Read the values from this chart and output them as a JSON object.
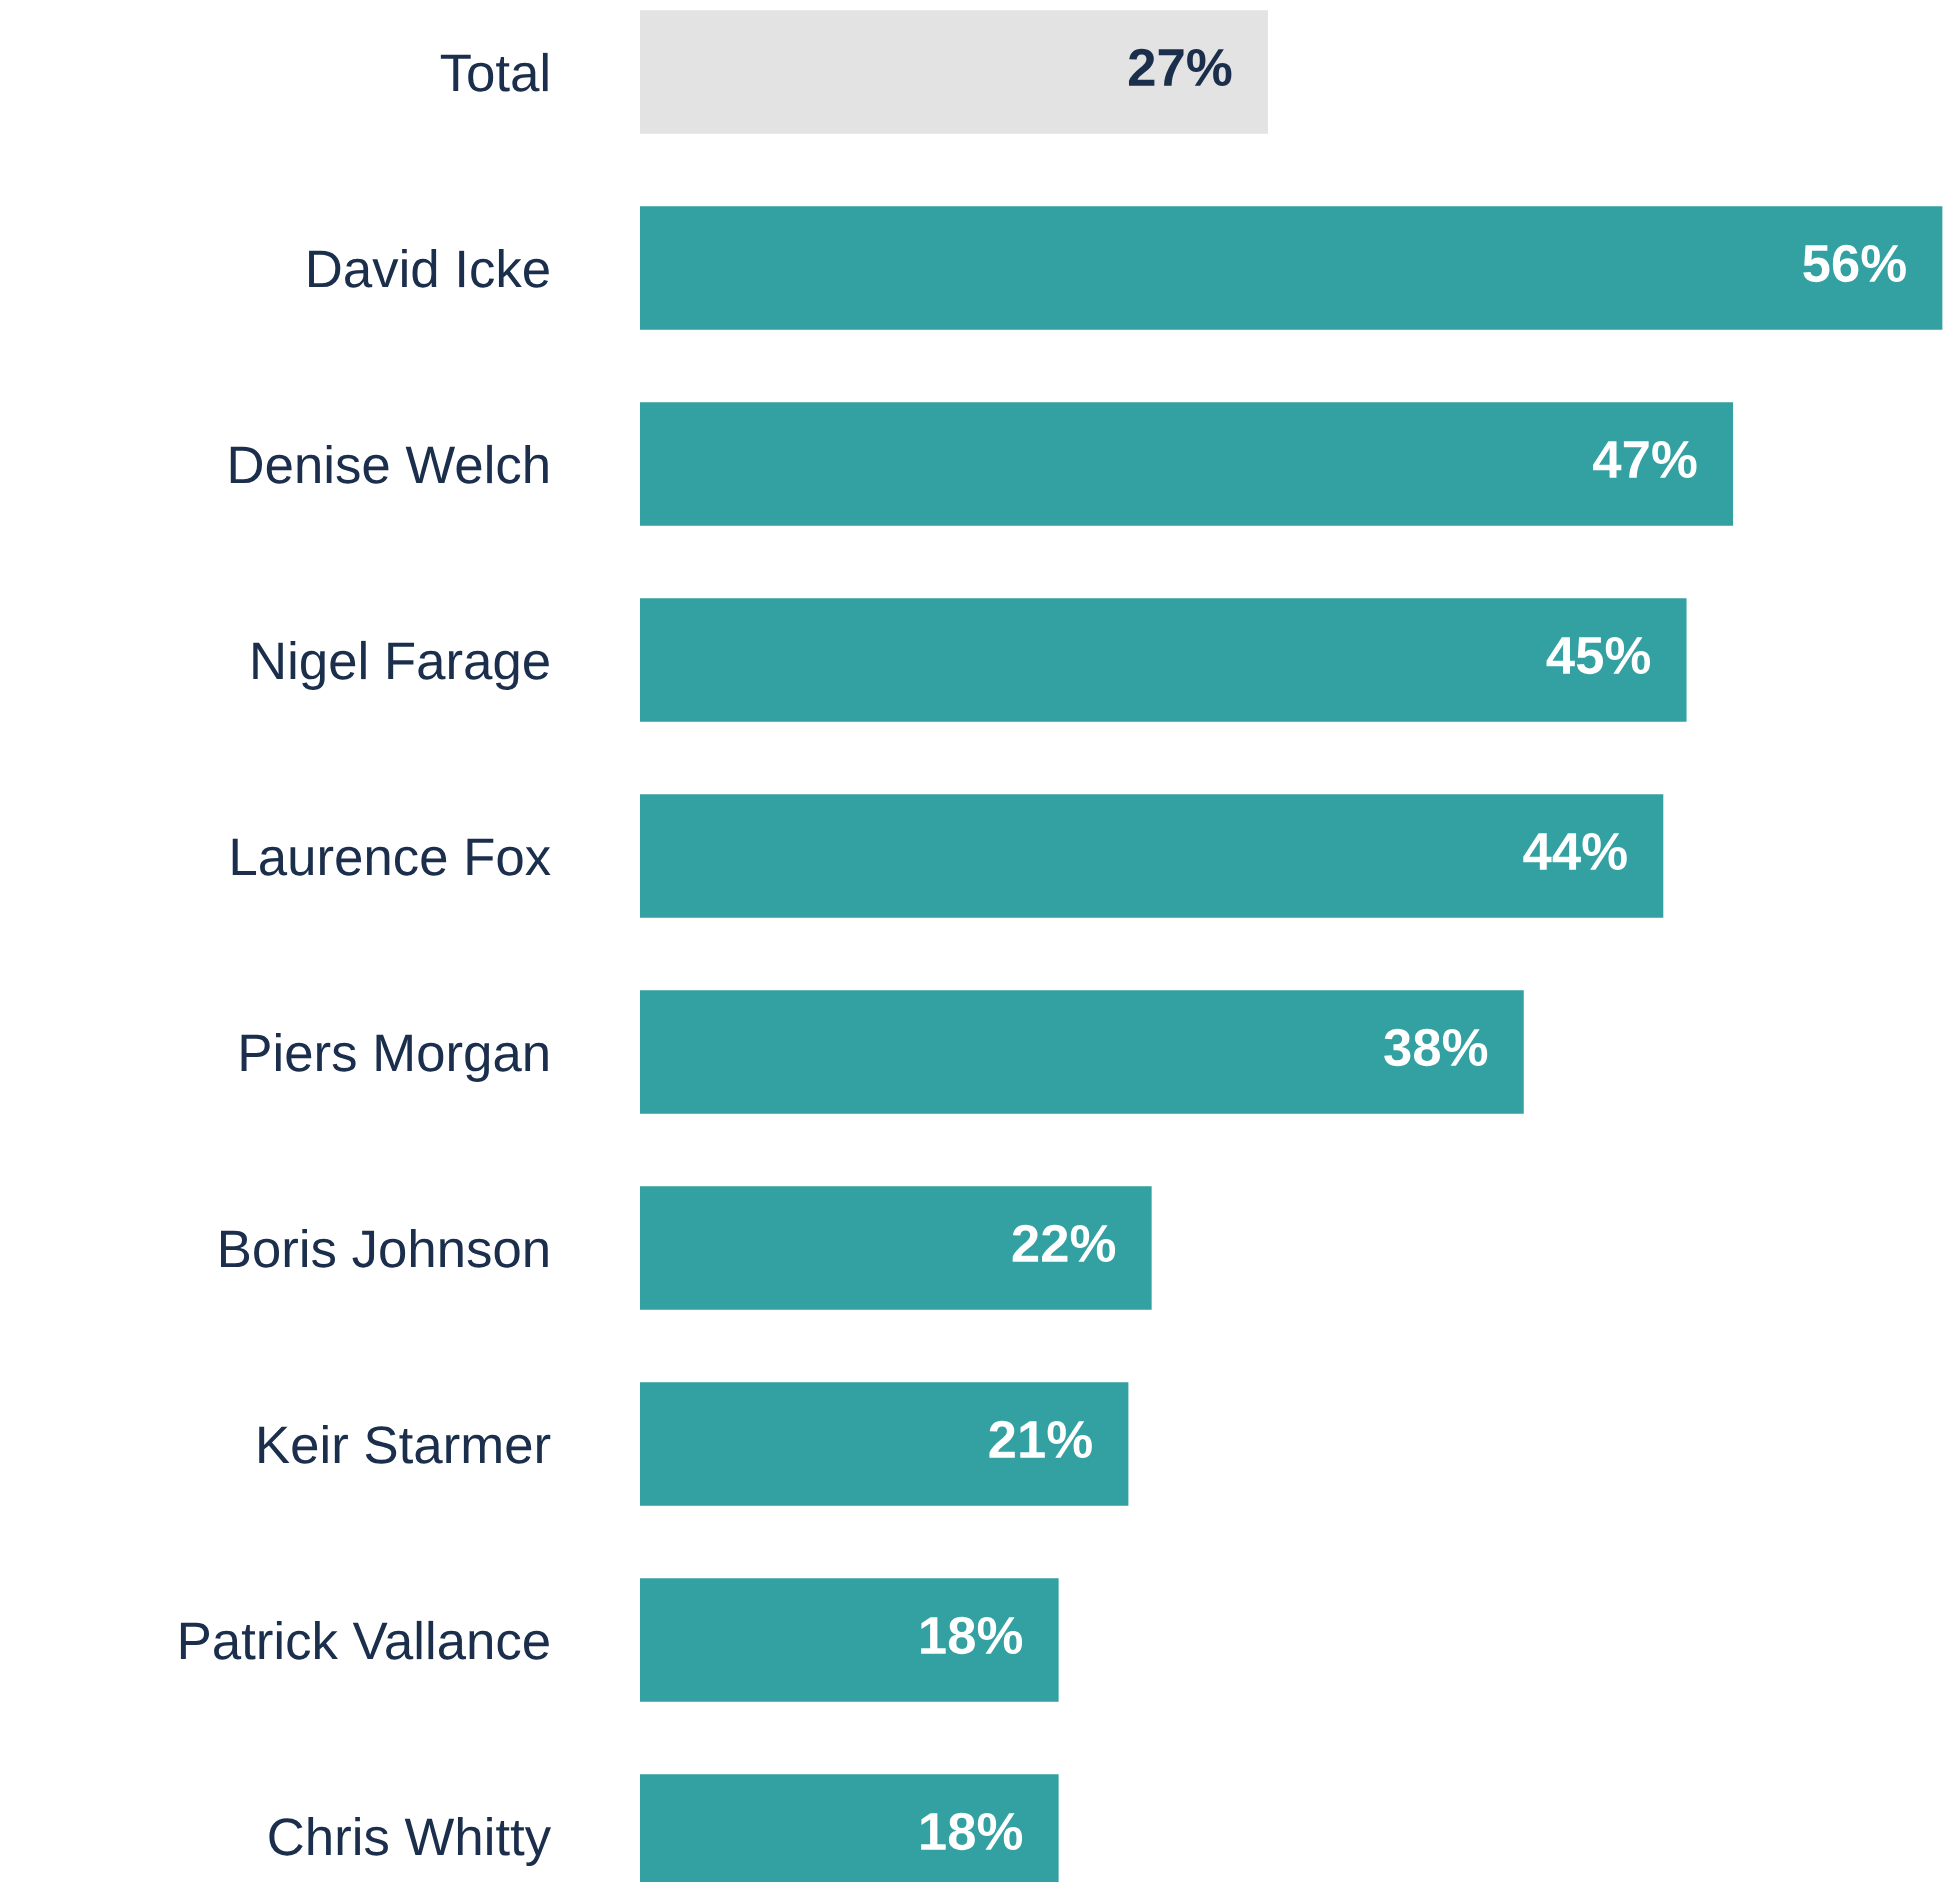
{
  "chart_data": {
    "type": "bar",
    "orientation": "horizontal",
    "categories": [
      "Total",
      "David Icke",
      "Denise Welch",
      "Nigel Farage",
      "Laurence Fox",
      "Piers Morgan",
      "Boris Johnson",
      "Keir Starmer",
      "Patrick Vallance",
      "Chris Whitty"
    ],
    "values": [
      27,
      56,
      47,
      45,
      44,
      38,
      22,
      21,
      18,
      18
    ],
    "colors": [
      "#e3e3e3",
      "#33a1a1",
      "#33a1a1",
      "#33a1a1",
      "#33a1a1",
      "#33a1a1",
      "#33a1a1",
      "#33a1a1",
      "#33a1a1",
      "#33a1a1"
    ],
    "value_labels": [
      "27%",
      "56%",
      "47%",
      "45%",
      "44%",
      "38%",
      "22%",
      "21%",
      "18%",
      "18%"
    ]
  }
}
